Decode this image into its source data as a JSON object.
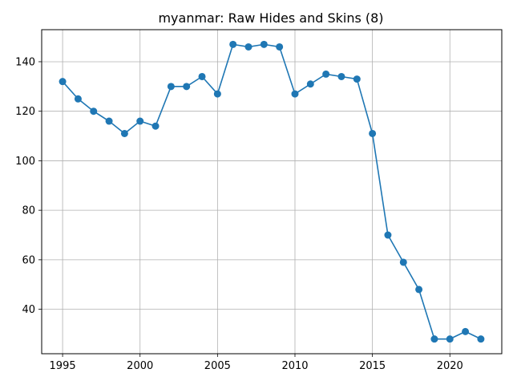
{
  "chart_data": {
    "type": "line",
    "title": "myanmar: Raw Hides and Skins (8)",
    "xlabel": "",
    "ylabel": "",
    "x": [
      1995,
      1996,
      1997,
      1998,
      1999,
      2000,
      2001,
      2002,
      2003,
      2004,
      2005,
      2006,
      2007,
      2008,
      2009,
      2010,
      2011,
      2012,
      2013,
      2014,
      2015,
      2016,
      2017,
      2018,
      2019,
      2020,
      2021,
      2022
    ],
    "series": [
      {
        "values": [
          132,
          125,
          120,
          116,
          111,
          116,
          114,
          130,
          130,
          134,
          127,
          147,
          146,
          147,
          146,
          127,
          131,
          135,
          134,
          133,
          111,
          70,
          59,
          48,
          28,
          28,
          31,
          28
        ]
      }
    ],
    "xlim": [
      1993.65,
      2023.35
    ],
    "ylim": [
      22.05,
      152.95
    ],
    "xticks": [
      1995,
      2000,
      2005,
      2010,
      2015,
      2020
    ],
    "yticks": [
      40,
      60,
      80,
      100,
      120,
      140
    ],
    "grid": true,
    "line_color": "#1f77b4",
    "marker": "circle"
  }
}
